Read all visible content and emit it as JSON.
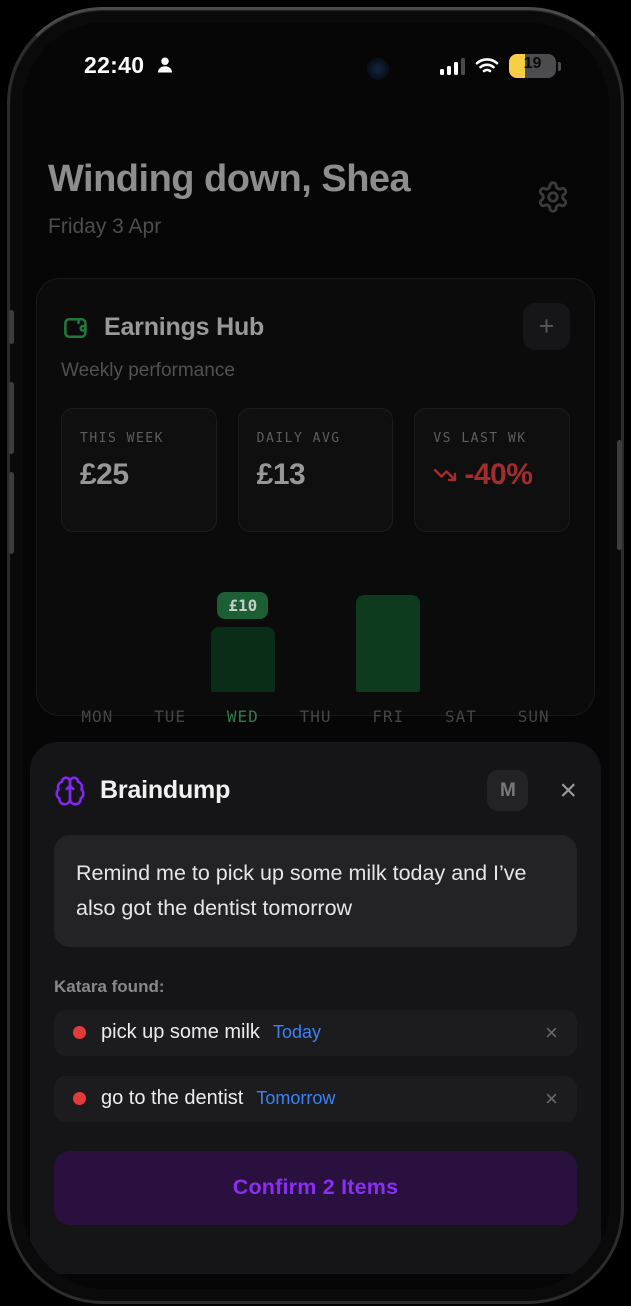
{
  "status_bar": {
    "time": "22:40",
    "battery_level": "19"
  },
  "header": {
    "greeting": "Winding down, Shea",
    "date": "Friday 3 Apr"
  },
  "earnings": {
    "title": "Earnings Hub",
    "subtitle": "Weekly performance",
    "add_label": "+",
    "stats": [
      {
        "label": "THIS WEEK",
        "value": "£25"
      },
      {
        "label": "DAILY AVG",
        "value": "£13"
      },
      {
        "label": "VS LAST WK",
        "value": "-40%"
      }
    ]
  },
  "chart_data": {
    "type": "bar",
    "title": "Weekly earnings",
    "categories": [
      "MON",
      "TUE",
      "WED",
      "THU",
      "FRI",
      "SAT",
      "SUN"
    ],
    "values": [
      0,
      0,
      10,
      0,
      15,
      0,
      0
    ],
    "highlighted_category": "WED",
    "tooltip": {
      "category": "WED",
      "label": "£10"
    },
    "xlabel": "",
    "ylabel": "",
    "ylim": [
      0,
      15
    ],
    "grid": false,
    "legend": false,
    "bar_color": "#0e3a1e",
    "highlight_bar_color": "#0a2d17"
  },
  "braindump": {
    "title": "Braindump",
    "mode_badge": "M",
    "close_glyph": "×",
    "input_text": "Remind me to pick up some milk today and I’ve also got the dentist tomorrow",
    "found_label": "Katara found:",
    "items": [
      {
        "text": "pick up some milk",
        "when": "Today",
        "remove_glyph": "×"
      },
      {
        "text": "go to the dentist",
        "when": "Tomorrow",
        "remove_glyph": "×"
      }
    ],
    "confirm_label": "Confirm 2 Items"
  },
  "colors": {
    "accent_purple": "#8b2df2",
    "green": "#1d5f35",
    "negative_red": "#a32c2c",
    "link_blue": "#3b82f6",
    "battery_yellow": "#f7ce45",
    "todo_red": "#e23b3b"
  }
}
